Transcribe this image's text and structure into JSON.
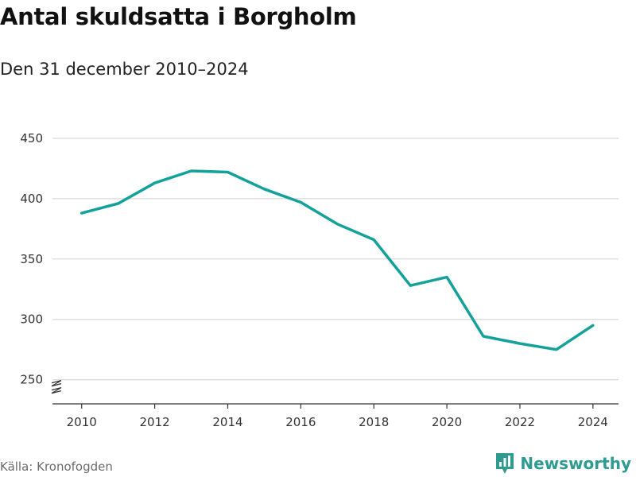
{
  "title": "Antal skuldsatta i Borgholm",
  "subtitle": "Den 31 december 2010–2024",
  "source": "Källa: Kronofogden",
  "brand": {
    "name": "Newsworthy",
    "icon": "bar-chart-logo-icon",
    "color": "#2e9a92"
  },
  "chart_data": {
    "type": "line",
    "title": "Antal skuldsatta i Borgholm",
    "subtitle": "Den 31 december 2010–2024",
    "xlabel": "",
    "ylabel": "",
    "x": [
      2010,
      2011,
      2012,
      2013,
      2014,
      2015,
      2016,
      2017,
      2018,
      2019,
      2020,
      2021,
      2022,
      2023,
      2024
    ],
    "series": [
      {
        "values": [
          388,
          396,
          413,
          423,
          422,
          408,
          397,
          379,
          366,
          328,
          335,
          286,
          280,
          275,
          295
        ],
        "color": "#14a19a"
      }
    ],
    "xticks": [
      "2010",
      "2012",
      "2014",
      "2016",
      "2018",
      "2020",
      "2022",
      "2024"
    ],
    "yticks": [
      "250",
      "300",
      "350",
      "400",
      "450"
    ],
    "ylim": [
      230,
      450
    ],
    "xlim": [
      2009.2,
      2024.7
    ],
    "grid": true,
    "axis_break": true,
    "legend": "none"
  }
}
